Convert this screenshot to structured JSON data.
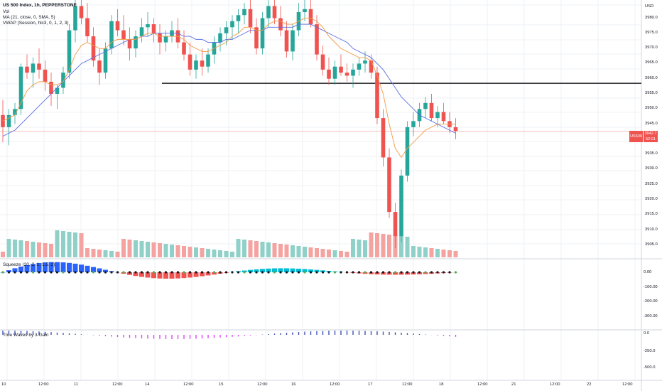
{
  "symbol_line": {
    "symbol": "US 500 Index, 1h, PEPPERSTONE",
    "volume": "Vol",
    "ma": "MA (21, close, 0, SMA, 5)",
    "vwap": "VWAP (Session, hlc3, 0, 1, 2, 3)"
  },
  "indicators": {
    "squeeze_label": "Squeeze (20, 2, 1, 1.5, 2)",
    "ao_label": "True Waves by 3-Gain"
  },
  "currency": "USD",
  "price_tag": {
    "symbol": "US500",
    "price": "3942.7",
    "countdown": "52:01"
  },
  "price_axis": [
    "3980.0",
    "3975.0",
    "3970.0",
    "3965.0",
    "3960.0",
    "3955.0",
    "3950.0",
    "3945.0",
    "3935.0",
    "3930.0",
    "3925.0",
    "3920.0",
    "3915.0",
    "3910.0",
    "3905.0"
  ],
  "squeeze_axis": [
    "0.00",
    "-100.00",
    "-200.00",
    "-300.00"
  ],
  "ao_axis": [
    "0.0",
    "-250.0",
    "-500.0"
  ],
  "time_axis": [
    "10",
    "12:00",
    "11",
    "12:00",
    "14",
    "12:00",
    "15",
    "12:00",
    "16",
    "12:00",
    "17",
    "12:00",
    "18",
    "12:00",
    "21",
    "12:00",
    "22",
    "12:00"
  ],
  "colors": {
    "up": "#26a69a",
    "down": "#ef5350",
    "ma": "#5b6ee1",
    "vwap": "#f29a45",
    "grid": "#eef1f6",
    "horizontal_line": "#000000"
  },
  "chart_data": {
    "type": "candlestick",
    "ylim": [
      3901,
      3986
    ],
    "horizontal_level": 3958.5,
    "current_price": 3942.7,
    "candles": [
      [
        3948,
        3953,
        3939,
        3944
      ],
      [
        3944,
        3950,
        3938,
        3948
      ],
      [
        3948,
        3952,
        3945,
        3950
      ],
      [
        3950,
        3965,
        3948,
        3964
      ],
      [
        3964,
        3968,
        3960,
        3962
      ],
      [
        3962,
        3967,
        3957,
        3965
      ],
      [
        3965,
        3970,
        3960,
        3963
      ],
      [
        3963,
        3966,
        3956,
        3959
      ],
      [
        3959,
        3962,
        3951,
        3955
      ],
      [
        3955,
        3958,
        3950,
        3957
      ],
      [
        3957,
        3964,
        3955,
        3962
      ],
      [
        3962,
        3978,
        3960,
        3976
      ],
      [
        3976,
        3986,
        3972,
        3984
      ],
      [
        3984,
        3987,
        3978,
        3980
      ],
      [
        3980,
        3985,
        3972,
        3974
      ],
      [
        3974,
        3977,
        3964,
        3966
      ],
      [
        3966,
        3970,
        3958,
        3962
      ],
      [
        3962,
        3972,
        3960,
        3970
      ],
      [
        3970,
        3981,
        3968,
        3979
      ],
      [
        3979,
        3983,
        3974,
        3976
      ],
      [
        3976,
        3981,
        3971,
        3973
      ],
      [
        3973,
        3977,
        3966,
        3970
      ],
      [
        3970,
        3976,
        3967,
        3974
      ],
      [
        3974,
        3980,
        3972,
        3977
      ],
      [
        3977,
        3982,
        3974,
        3978
      ],
      [
        3978,
        3980,
        3972,
        3975
      ],
      [
        3975,
        3978,
        3968,
        3972
      ],
      [
        3972,
        3976,
        3969,
        3974
      ],
      [
        3974,
        3979,
        3972,
        3976
      ],
      [
        3976,
        3980,
        3970,
        3972
      ],
      [
        3972,
        3976,
        3966,
        3968
      ],
      [
        3968,
        3972,
        3961,
        3963
      ],
      [
        3963,
        3968,
        3960,
        3966
      ],
      [
        3966,
        3970,
        3961,
        3964
      ],
      [
        3964,
        3970,
        3962,
        3968
      ],
      [
        3968,
        3974,
        3965,
        3972
      ],
      [
        3972,
        3977,
        3969,
        3975
      ],
      [
        3975,
        3979,
        3971,
        3977
      ],
      [
        3977,
        3981,
        3973,
        3979
      ],
      [
        3979,
        3983,
        3975,
        3981
      ],
      [
        3981,
        3985,
        3978,
        3983
      ],
      [
        3983,
        3986,
        3975,
        3977
      ],
      [
        3977,
        3980,
        3968,
        3970
      ],
      [
        3970,
        3982,
        3968,
        3980
      ],
      [
        3980,
        3986,
        3977,
        3984
      ],
      [
        3984,
        3987,
        3978,
        3980
      ],
      [
        3980,
        3984,
        3974,
        3976
      ],
      [
        3976,
        3979,
        3967,
        3969
      ],
      [
        3969,
        3978,
        3966,
        3976
      ],
      [
        3976,
        3985,
        3974,
        3982
      ],
      [
        3982,
        3987,
        3979,
        3983
      ],
      [
        3983,
        3986,
        3977,
        3978
      ],
      [
        3978,
        3981,
        3966,
        3968
      ],
      [
        3968,
        3971,
        3961,
        3963
      ],
      [
        3963,
        3967,
        3958,
        3960
      ],
      [
        3960,
        3966,
        3958,
        3964
      ],
      [
        3964,
        3968,
        3961,
        3962
      ],
      [
        3962,
        3965,
        3959,
        3961
      ],
      [
        3961,
        3965,
        3957,
        3963
      ],
      [
        3963,
        3967,
        3961,
        3965
      ],
      [
        3965,
        3969,
        3962,
        3966
      ],
      [
        3966,
        3968,
        3960,
        3962
      ],
      [
        3962,
        3964,
        3945,
        3947
      ],
      [
        3947,
        3950,
        3931,
        3934
      ],
      [
        3934,
        3937,
        3914,
        3916
      ],
      [
        3916,
        3919,
        3904,
        3908
      ],
      [
        3908,
        3930,
        3906,
        3928
      ],
      [
        3928,
        3946,
        3926,
        3944
      ],
      [
        3944,
        3949,
        3941,
        3946
      ],
      [
        3946,
        3952,
        3944,
        3950
      ],
      [
        3950,
        3954,
        3947,
        3952
      ],
      [
        3952,
        3955,
        3946,
        3947
      ],
      [
        3947,
        3951,
        3944,
        3949
      ],
      [
        3949,
        3952,
        3945,
        3946
      ],
      [
        3946,
        3949,
        3942,
        3944
      ],
      [
        3944,
        3947,
        3940,
        3942.7
      ]
    ],
    "series": [
      {
        "name": "MA (21, close, 0, SMA, 5)",
        "values": [
          3941,
          3942,
          3943,
          3945,
          3947,
          3949,
          3951,
          3953,
          3955,
          3957,
          3959,
          3961,
          3963,
          3965,
          3966,
          3967,
          3968,
          3969,
          3970,
          3971,
          3972,
          3973,
          3973,
          3974,
          3974,
          3975,
          3975,
          3975,
          3975,
          3975,
          3974,
          3974,
          3973,
          3973,
          3972,
          3972,
          3972,
          3973,
          3973,
          3974,
          3975,
          3976,
          3976,
          3976,
          3977,
          3977,
          3977,
          3977,
          3977,
          3978,
          3978,
          3978,
          3977,
          3976,
          3975,
          3974,
          3973,
          3972,
          3970,
          3969,
          3968,
          3967,
          3965,
          3963,
          3960,
          3957,
          3954,
          3952,
          3950,
          3948,
          3947,
          3946,
          3945,
          3944,
          3943,
          3942
        ]
      },
      {
        "name": "VWAP (Session, hlc3, 0, 1, 2, 3)",
        "values": [
          3946,
          3947,
          3948,
          3952,
          3956,
          3958,
          3959,
          3959,
          3958,
          3958,
          3959,
          3963,
          3968,
          3971,
          3972,
          3971,
          3970,
          3970,
          3972,
          3973,
          3973,
          3973,
          3973,
          3974,
          3975,
          3975,
          3974,
          3974,
          3974,
          3974,
          3973,
          3971,
          3970,
          3969,
          3969,
          3970,
          3971,
          3972,
          3974,
          3975,
          3977,
          3977,
          3976,
          3976,
          3978,
          3979,
          3979,
          3978,
          3978,
          3979,
          3980,
          3980,
          3979,
          3977,
          3974,
          3972,
          3970,
          3969,
          3968,
          3967,
          3967,
          3966,
          3961,
          3955,
          3945,
          3937,
          3934,
          3937,
          3939,
          3941,
          3943,
          3944,
          3945,
          3945,
          3945,
          3945
        ]
      }
    ]
  }
}
